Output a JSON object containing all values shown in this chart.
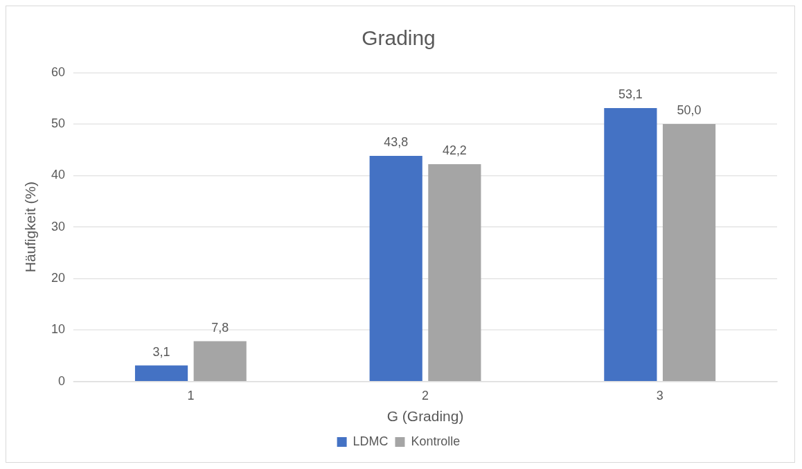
{
  "chart_data": {
    "type": "bar",
    "title": "Grading",
    "xlabel": "G (Grading)",
    "ylabel": "Häufigkeit (%)",
    "categories": [
      "1",
      "2",
      "3"
    ],
    "series": [
      {
        "name": "LDMC",
        "color": "#4472c4",
        "values": [
          3.1,
          43.8,
          53.1
        ],
        "value_labels": [
          "3,1",
          "43,8",
          "53,1"
        ]
      },
      {
        "name": "Kontrolle",
        "color": "#a5a5a5",
        "values": [
          7.8,
          42.2,
          50.0
        ],
        "value_labels": [
          "7,8",
          "42,2",
          "50,0"
        ]
      }
    ],
    "ylim": [
      0,
      60
    ],
    "yticks": [
      0,
      10,
      20,
      30,
      40,
      50,
      60
    ],
    "grid": "y",
    "legend": "bottom"
  }
}
